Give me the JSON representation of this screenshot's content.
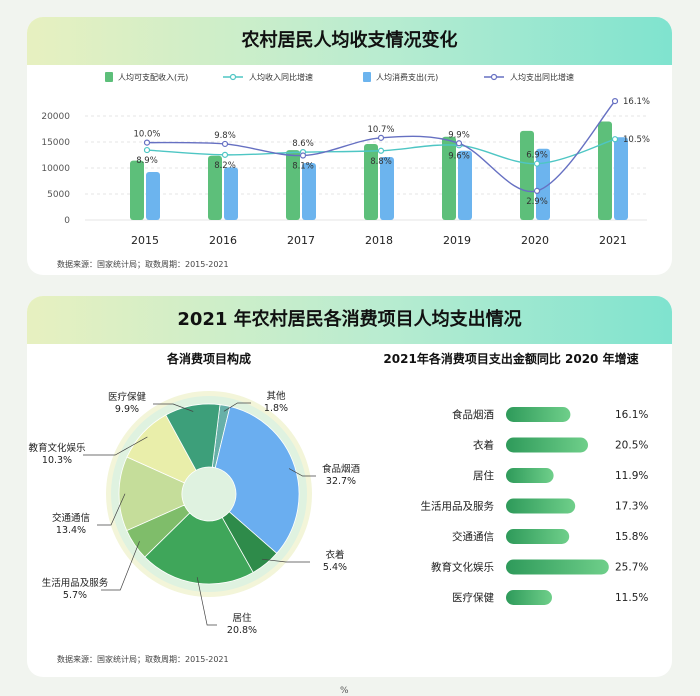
{
  "colors": {
    "income_bar": "#5dbf7a",
    "expense_bar": "#6cb4ee",
    "income_growth_line": "#4ec6c4",
    "expense_growth_line": "#6670c2",
    "pie": [
      "#67b0a8",
      "#6aaef0",
      "#2e8b4a",
      "#3fa65a",
      "#7fbd6a",
      "#c5dd9a",
      "#e9eeaa",
      "#3d9f7a"
    ]
  },
  "section1": {
    "title": "农村居民人均收支情况变化",
    "source": "数据来源：国家统计局；取数周期：2015-2021"
  },
  "section2": {
    "title": "2021 年农村居民各消费项目人均支出情况",
    "pie_title": "各消费项目构成",
    "bar_title": "2021年各消费项目支出金额同比 2020 年增速",
    "source": "数据来源：国家统计局；取数周期：2015-2021"
  },
  "page_mark": "%",
  "chart_data": [
    {
      "type": "bar",
      "categories": [
        "2015",
        "2016",
        "2017",
        "2018",
        "2019",
        "2020",
        "2021"
      ],
      "ylim": [
        0,
        20000
      ],
      "yticks": [
        "0",
        "5000",
        "10000",
        "15000",
        "20000"
      ],
      "grid": true,
      "legend_position": "top",
      "series": [
        {
          "name": "人均可支配收入(元)",
          "type": "bar",
          "values": [
            11422,
            12363,
            13432,
            14617,
            16021,
            17131,
            18931
          ]
        },
        {
          "name": "人均收入同比增速",
          "type": "line",
          "values": [
            8.9,
            8.2,
            8.6,
            8.8,
            9.6,
            6.9,
            10.5
          ],
          "labels": [
            "8.9%",
            "8.2%",
            "8.6%",
            "8.8%",
            "9.6%",
            "6.9%",
            "10.5%"
          ]
        },
        {
          "name": "人均消费支出(元)",
          "type": "bar",
          "values": [
            9223,
            10130,
            10955,
            12124,
            13328,
            13713,
            15916
          ]
        },
        {
          "name": "人均支出同比增速",
          "type": "line",
          "values": [
            10.0,
            9.8,
            8.1,
            10.7,
            9.9,
            2.9,
            16.1
          ],
          "labels": [
            "10.0%",
            "9.8%",
            "8.1%",
            "10.7%",
            "9.9%",
            "2.9%",
            "16.1%"
          ]
        }
      ]
    },
    {
      "type": "pie",
      "title": "各消费项目构成",
      "categories": [
        "其他",
        "食品烟酒",
        "衣着",
        "居住",
        "生活用品及服务",
        "交通通信",
        "教育文化娱乐",
        "医疗保健"
      ],
      "values": [
        1.8,
        32.7,
        5.4,
        20.8,
        5.7,
        13.4,
        10.3,
        9.9
      ],
      "labels": [
        "1.8%",
        "32.7%",
        "5.4%",
        "20.8%",
        "5.7%",
        "13.4%",
        "10.3%",
        "9.9%"
      ]
    },
    {
      "type": "bar",
      "title": "2021年各消费项目支出金额同比 2020 年增速",
      "orientation": "horizontal",
      "categories": [
        "食品烟酒",
        "衣着",
        "居住",
        "生活用品及服务",
        "交通通信",
        "教育文化娱乐",
        "医疗保健"
      ],
      "values": [
        16.1,
        20.5,
        11.9,
        17.3,
        15.8,
        25.7,
        11.5
      ],
      "labels": [
        "16.1%",
        "20.5%",
        "11.9%",
        "17.3%",
        "15.8%",
        "25.7%",
        "11.5%"
      ]
    }
  ]
}
